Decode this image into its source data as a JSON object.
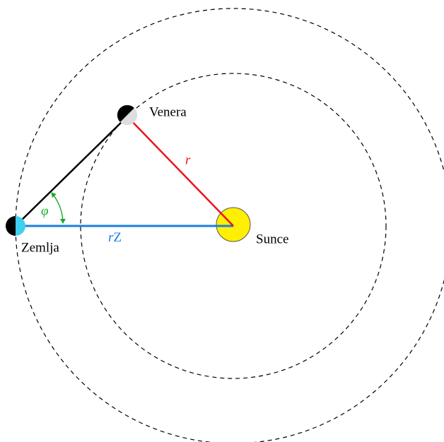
{
  "labels": {
    "venus": "Venera",
    "sun": "Sunce",
    "earth": "Zemlja",
    "r": "r",
    "r_earth": {
      "symbol": "r",
      "subscript": "Z"
    },
    "phi": "φ"
  }
}
